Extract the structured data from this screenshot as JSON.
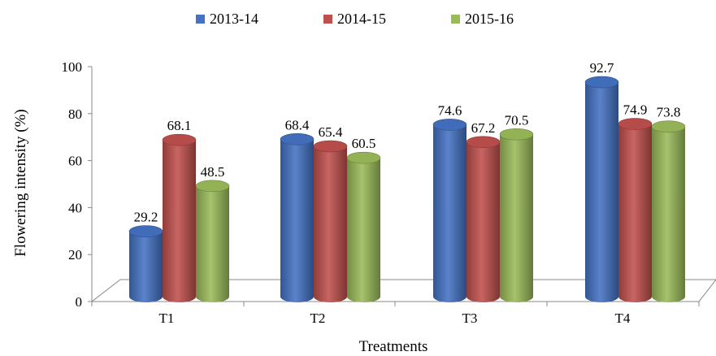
{
  "chart_data": {
    "type": "bar",
    "title": "",
    "xlabel": "Treatments",
    "ylabel": "Flowering intensity (%)",
    "ylim": [
      0,
      100
    ],
    "yticks": [
      0,
      20,
      40,
      60,
      80,
      100
    ],
    "categories": [
      "T1",
      "T2",
      "T3",
      "T4"
    ],
    "series": [
      {
        "name": "2013-14",
        "color": "#4472c4",
        "values": [
          29.2,
          68.4,
          74.6,
          92.7
        ]
      },
      {
        "name": "2014-15",
        "color": "#c0504d",
        "values": [
          68.1,
          65.4,
          67.2,
          74.9
        ]
      },
      {
        "name": "2015-16",
        "color": "#9bbb59",
        "values": [
          48.5,
          60.5,
          70.5,
          73.8
        ]
      }
    ],
    "data_labels": [
      [
        "29.2",
        "68.4",
        "74.6",
        "92.7"
      ],
      [
        "68.1",
        "65.4",
        "67.2",
        "74.9"
      ],
      [
        "48.5",
        "60.5",
        "70.5",
        "73.8"
      ]
    ],
    "legend_position": "top",
    "grid": false,
    "style": "3d-cylinder"
  }
}
